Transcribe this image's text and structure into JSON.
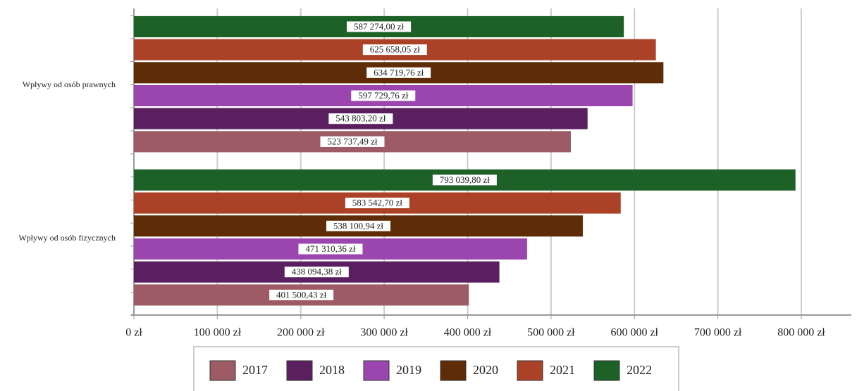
{
  "chart_data": {
    "type": "hbar",
    "categories": [
      "Wpływy od osób prawnych",
      "Wpływy od osób fizycznych"
    ],
    "series": [
      {
        "name": "2017",
        "color": "#9c5b65",
        "values": [
          523737.49,
          401500.43
        ],
        "value_labels": [
          "523 737,49 zł",
          "401 500,43 zł"
        ]
      },
      {
        "name": "2018",
        "color": "#5a1f5e",
        "values": [
          543803.2,
          438094.38
        ],
        "value_labels": [
          "543 803,20 zł",
          "438 094,38 zł"
        ]
      },
      {
        "name": "2019",
        "color": "#9b46ae",
        "values": [
          597729.76,
          471310.36
        ],
        "value_labels": [
          "597 729,76 zł",
          "471 310,36 zł"
        ]
      },
      {
        "name": "2020",
        "color": "#5e2d08",
        "values": [
          634719.76,
          538100.94
        ],
        "value_labels": [
          "634 719,76 zł",
          "538 100,94 zł"
        ]
      },
      {
        "name": "2021",
        "color": "#ab4126",
        "values": [
          625658.05,
          583542.7
        ],
        "value_labels": [
          "625 658,05 zł",
          "583 542,70 zł"
        ]
      },
      {
        "name": "2022",
        "color": "#1e6127",
        "values": [
          587274.0,
          793039.8
        ],
        "value_labels": [
          "587 274,00 zł",
          "793 039,80 zł"
        ]
      }
    ],
    "xlim": [
      0,
      860000
    ],
    "xticks": [
      {
        "value": 0,
        "label": "0 zł"
      },
      {
        "value": 100000,
        "label": "100 000 zł"
      },
      {
        "value": 200000,
        "label": "200 000 zł"
      },
      {
        "value": 300000,
        "label": "300 000 zł"
      },
      {
        "value": 400000,
        "label": "400 000 zł"
      },
      {
        "value": 500000,
        "label": "500 000 zł"
      },
      {
        "value": 600000,
        "label": "600 000 zł"
      },
      {
        "value": 700000,
        "label": "700 000 zł"
      },
      {
        "value": 800000,
        "label": "800 000 zł"
      }
    ],
    "grid": true,
    "legend": "bottom"
  }
}
